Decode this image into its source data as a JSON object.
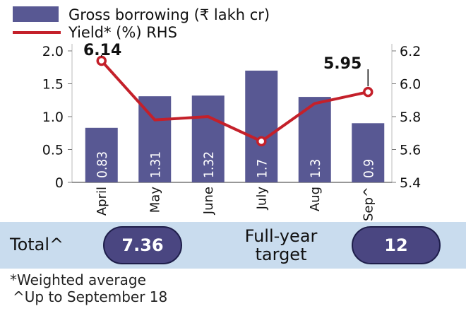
{
  "colors": {
    "bar": "#585893",
    "line": "#c4202a",
    "band": "#c9dcee",
    "pill": "#4a4681"
  },
  "legend": {
    "bars": "Gross borrowing (₹ lakh cr)",
    "line": "Yield* (%) RHS"
  },
  "chart_data": {
    "type": "bar+line",
    "categories": [
      "April",
      "May",
      "June",
      "July",
      "Aug",
      "Sep^"
    ],
    "series": [
      {
        "name": "Gross borrowing (₹ lakh cr)",
        "type": "bar",
        "axis": "left",
        "values": [
          0.83,
          1.31,
          1.32,
          1.7,
          1.3,
          0.9
        ],
        "labels": [
          "0.83",
          "1.31",
          "1.32",
          "1.7",
          "1.3",
          "0.9"
        ]
      },
      {
        "name": "Yield* (%) RHS",
        "type": "line",
        "axis": "right",
        "values": [
          6.14,
          5.78,
          5.8,
          5.65,
          5.88,
          5.95
        ]
      }
    ],
    "left_axis": {
      "ylim": [
        0,
        2.0
      ],
      "ticks": [
        "0",
        "0.5",
        "1.0",
        "1.5",
        "2.0"
      ]
    },
    "right_axis": {
      "ylim": [
        5.4,
        6.2
      ],
      "ticks": [
        "5.4",
        "5.6",
        "5.8",
        "6.0",
        "6.2"
      ]
    },
    "annotations": {
      "first": "6.14",
      "last": "5.95"
    }
  },
  "totals": {
    "total_label": "Total^",
    "total_value": "7.36",
    "target_label_1": "Full-year",
    "target_label_2": "target",
    "target_value": "12"
  },
  "notes": {
    "weighted": "*Weighted average",
    "upto": "^Up to September 18"
  }
}
